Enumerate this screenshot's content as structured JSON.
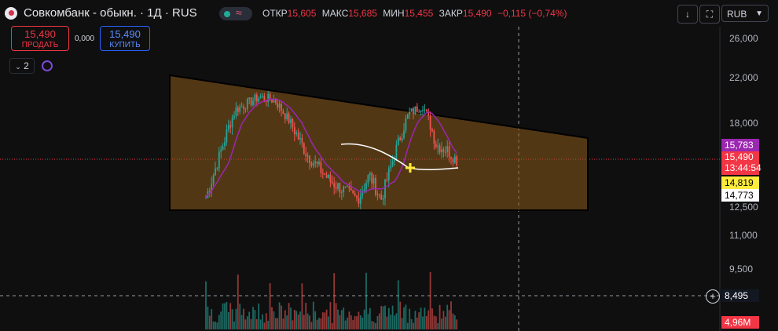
{
  "header": {
    "title": "Совкомбанк - обыкн. · 1Д · RUS",
    "ohlc": [
      {
        "key": "ОТКР",
        "value": "15,605"
      },
      {
        "key": "МАКС",
        "value": "15,685"
      },
      {
        "key": "МИН",
        "value": "15,455"
      },
      {
        "key": "ЗАКР",
        "value": "15,490"
      }
    ],
    "change": "−0,115 (−0,74%)",
    "currency": "RUB"
  },
  "trade": {
    "sell_price": "15,490",
    "sell_label": "ПРОДАТЬ",
    "spread": "0,000",
    "buy_price": "15,490",
    "buy_label": "КУПИТЬ"
  },
  "indicators": {
    "count": "2"
  },
  "price_axis": {
    "ticks": [
      "26,000",
      "22,000",
      "18,000",
      "12,500",
      "11,000",
      "9,500"
    ],
    "tags": {
      "t1": "15,783",
      "t2": "15,490",
      "t3": "13:44:54",
      "t4": "14,819",
      "t5": "14,773",
      "crosshair": "8,495",
      "volume": "4,96M"
    }
  },
  "chart_data": {
    "type": "candlestick",
    "price_levels": [
      26000,
      22000,
      18000,
      12500,
      11000,
      9500
    ],
    "last_price": 15490,
    "volume_last": "4,96M",
    "colors": {
      "up": "#26a69a",
      "down": "#ef5350",
      "pattern": "#8a5a1a",
      "ma": "#9c27b0",
      "line": "#ffffff"
    }
  },
  "colors": {
    "accent": "#2962ff",
    "down": "#f23645",
    "up": "#22ab94"
  }
}
